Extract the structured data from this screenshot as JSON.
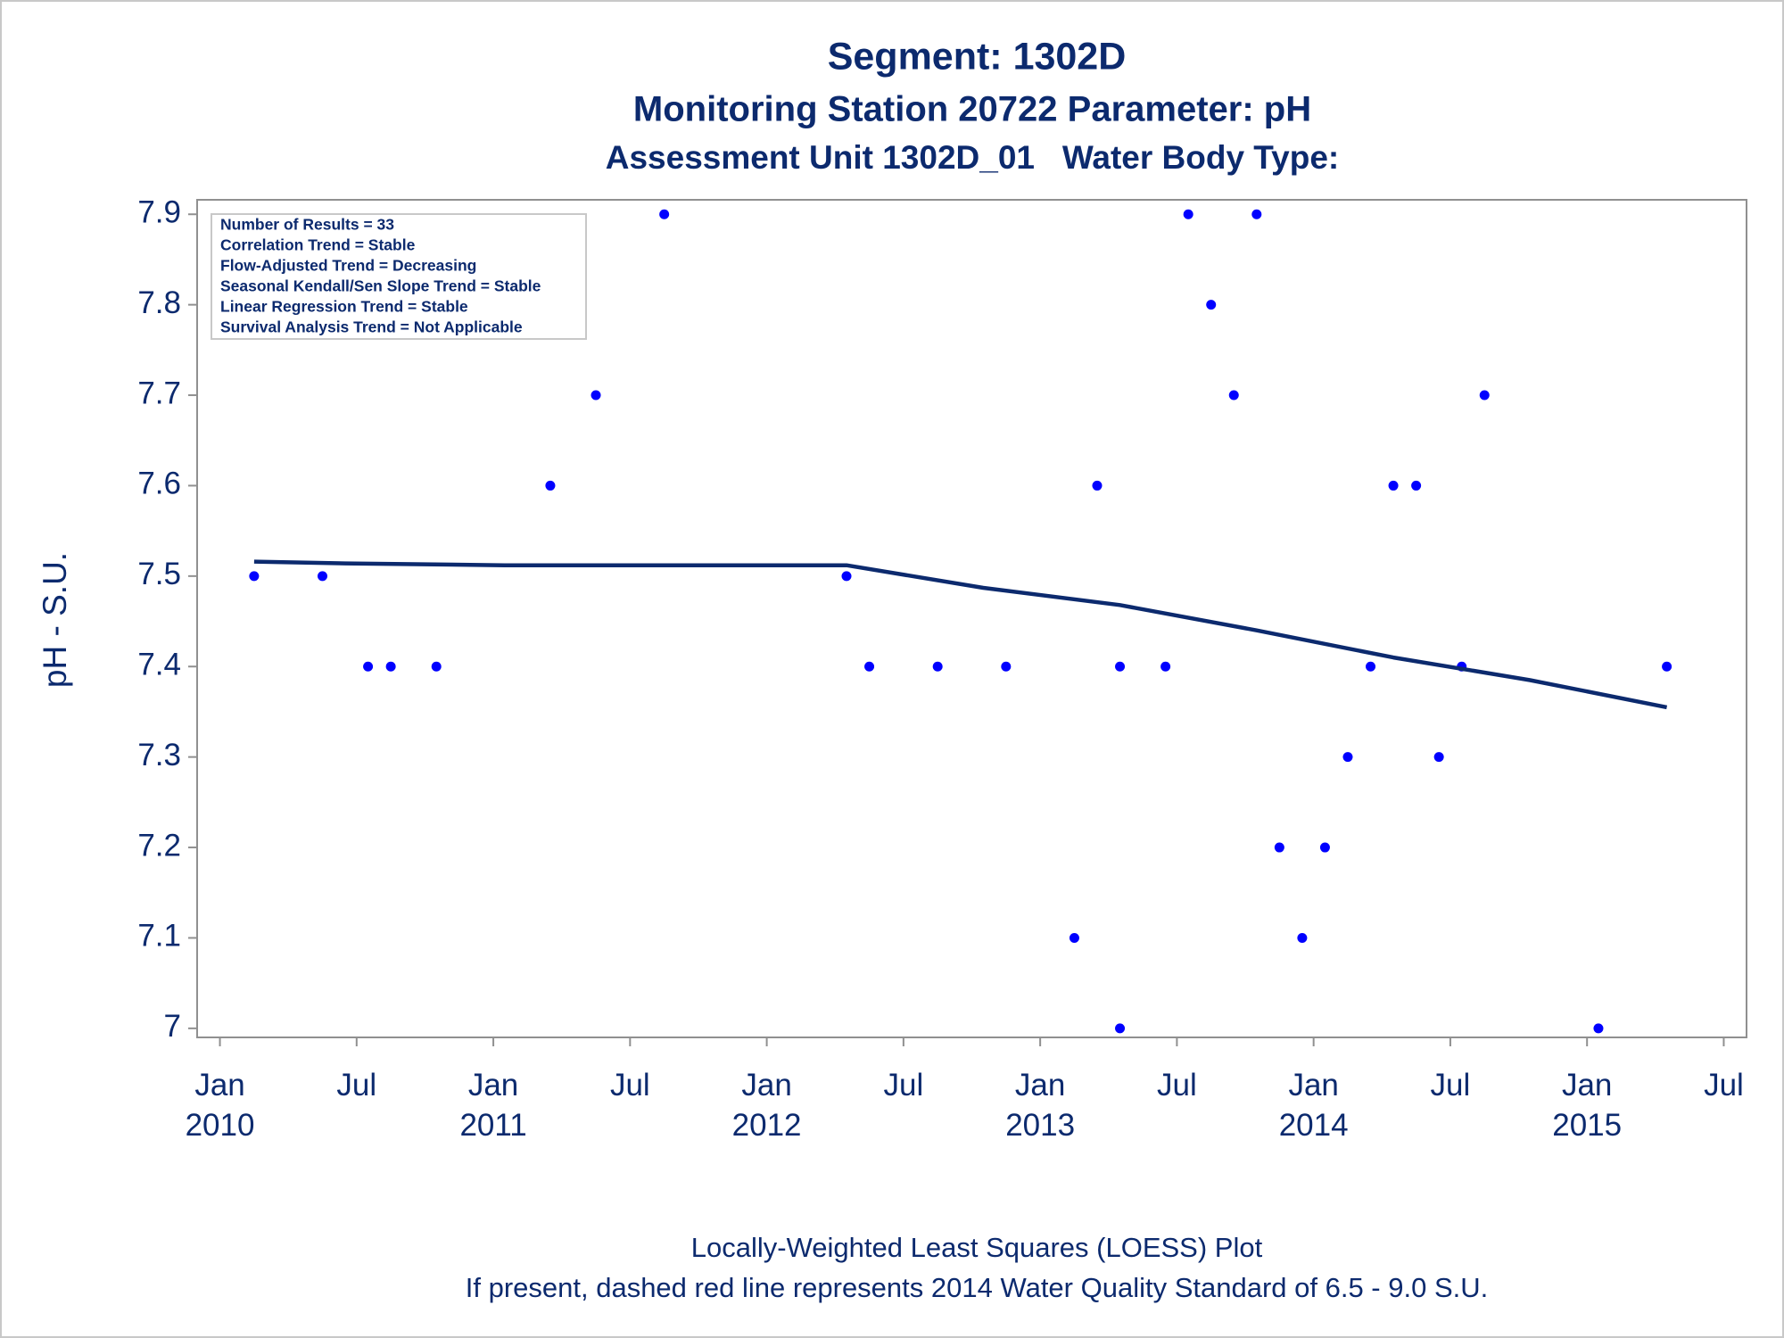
{
  "chart_data": {
    "type": "scatter",
    "title": "Segment: 1302D",
    "subtitle": "Monitoring Station 20722 Parameter: pH",
    "subtitle2": "Assessment Unit 1302D_01   Water Body Type:",
    "y_label": "pH - S.U.",
    "annotations": [
      "Number of Results = 33",
      "Correlation Trend = Stable",
      "Flow-Adjusted Trend = Decreasing",
      "Seasonal Kendall/Sen Slope Trend = Stable",
      "Linear Regression Trend = Stable",
      "Survival Analysis Trend = Not Applicable"
    ],
    "footnotes": [
      "Locally-Weighted Least Squares (LOESS) Plot",
      "If present, dashed red line represents 2014 Water Quality Standard of 6.5 - 9.0 S.U."
    ],
    "xlim": [
      "2009-12",
      "2015-08"
    ],
    "xticks": [
      {
        "value": "2010-01",
        "label": [
          "Jan",
          "2010"
        ]
      },
      {
        "value": "2010-07",
        "label": [
          "Jul"
        ]
      },
      {
        "value": "2011-01",
        "label": [
          "Jan",
          "2011"
        ]
      },
      {
        "value": "2011-07",
        "label": [
          "Jul"
        ]
      },
      {
        "value": "2012-01",
        "label": [
          "Jan",
          "2012"
        ]
      },
      {
        "value": "2012-07",
        "label": [
          "Jul"
        ]
      },
      {
        "value": "2013-01",
        "label": [
          "Jan",
          "2013"
        ]
      },
      {
        "value": "2013-07",
        "label": [
          "Jul"
        ]
      },
      {
        "value": "2014-01",
        "label": [
          "Jan",
          "2014"
        ]
      },
      {
        "value": "2014-07",
        "label": [
          "Jul"
        ]
      },
      {
        "value": "2015-01",
        "label": [
          "Jan",
          "2015"
        ]
      },
      {
        "value": "2015-07",
        "label": [
          "Jul"
        ]
      }
    ],
    "ylim": [
      6.99,
      7.916
    ],
    "yticks": [
      7,
      7.1,
      7.2,
      7.3,
      7.4,
      7.5,
      7.6,
      7.7,
      7.8,
      7.9
    ],
    "series": [
      {
        "type": "scatter",
        "color": "#0000ff",
        "x": [
          "2010-02",
          "2010-05",
          "2010-07",
          "2010-08",
          "2010-10",
          "2011-03",
          "2011-05",
          "2011-08",
          "2012-04",
          "2012-05",
          "2012-08",
          "2012-11",
          "2013-02",
          "2013-03",
          "2013-04",
          "2013-04",
          "2013-06",
          "2013-07",
          "2013-08",
          "2013-09",
          "2013-10",
          "2013-11",
          "2013-12",
          "2014-01",
          "2014-02",
          "2014-03",
          "2014-04",
          "2014-05",
          "2014-06",
          "2014-07",
          "2014-08",
          "2015-01",
          "2015-04"
        ],
        "values": [
          7.5,
          7.5,
          7.4,
          7.4,
          7.4,
          7.6,
          7.7,
          7.9,
          7.5,
          7.4,
          7.4,
          7.4,
          7.1,
          7.6,
          7.4,
          7.0,
          7.4,
          7.9,
          7.8,
          7.7,
          7.9,
          7.2,
          7.1,
          7.2,
          7.3,
          7.4,
          7.6,
          7.6,
          7.3,
          7.4,
          7.7,
          7.0,
          7.4
        ]
      },
      {
        "type": "line",
        "color": "#0c2a6e",
        "x": [
          "2010-02",
          "2010-06",
          "2011-01",
          "2011-06",
          "2012-01",
          "2012-04",
          "2012-10",
          "2013-04",
          "2013-10",
          "2014-04",
          "2014-10",
          "2015-04"
        ],
        "values": [
          7.516,
          7.514,
          7.512,
          7.512,
          7.512,
          7.512,
          7.487,
          7.468,
          7.44,
          7.41,
          7.385,
          7.355
        ]
      }
    ]
  }
}
